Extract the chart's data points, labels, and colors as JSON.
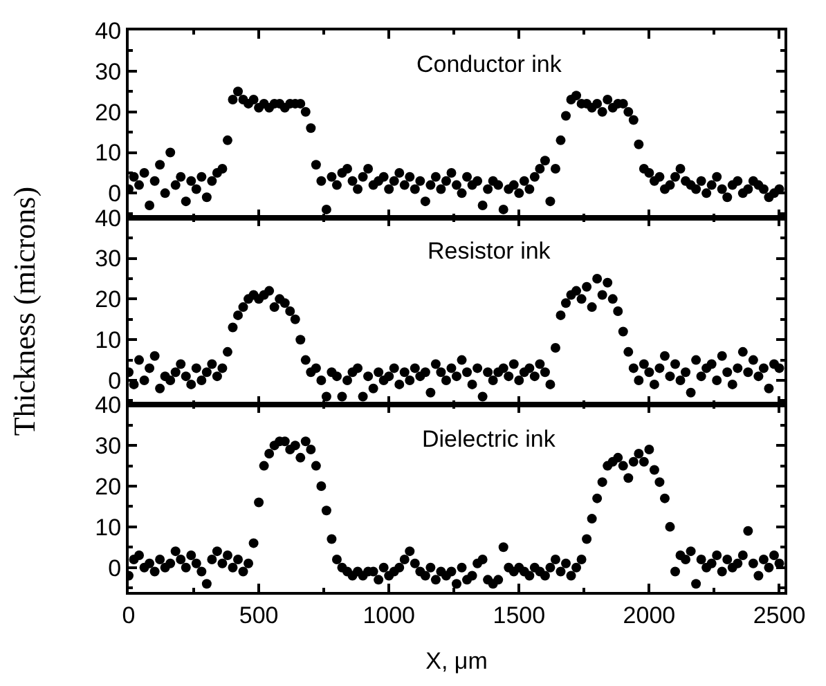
{
  "chart_data": [
    {
      "type": "scatter",
      "title": "Conductor ink",
      "marker": "circle",
      "tick_labels": "y",
      "xlim": [
        0,
        2520
      ],
      "xticks": [
        0,
        500,
        1000,
        1500,
        2000,
        2500
      ],
      "ylim": [
        -6,
        40
      ],
      "yticks": [
        0,
        10,
        20,
        30,
        40
      ],
      "x": [
        0,
        20,
        40,
        60,
        80,
        100,
        120,
        140,
        160,
        180,
        200,
        220,
        240,
        260,
        280,
        300,
        320,
        340,
        360,
        380,
        400,
        420,
        440,
        460,
        480,
        500,
        520,
        540,
        560,
        580,
        600,
        620,
        640,
        660,
        680,
        700,
        720,
        740,
        760,
        780,
        800,
        820,
        840,
        860,
        880,
        900,
        920,
        940,
        960,
        980,
        1000,
        1020,
        1040,
        1060,
        1080,
        1100,
        1120,
        1140,
        1160,
        1180,
        1200,
        1220,
        1240,
        1260,
        1280,
        1300,
        1320,
        1340,
        1360,
        1380,
        1400,
        1420,
        1440,
        1460,
        1480,
        1500,
        1520,
        1540,
        1560,
        1580,
        1600,
        1620,
        1640,
        1660,
        1680,
        1700,
        1720,
        1740,
        1760,
        1780,
        1800,
        1820,
        1840,
        1860,
        1880,
        1900,
        1920,
        1940,
        1960,
        1980,
        2000,
        2020,
        2040,
        2060,
        2080,
        2100,
        2120,
        2140,
        2160,
        2180,
        2200,
        2220,
        2240,
        2260,
        2280,
        2300,
        2320,
        2340,
        2360,
        2380,
        2400,
        2420,
        2440,
        2460,
        2480,
        2500
      ],
      "series": [
        {
          "color": "#000000",
          "values": [
            1,
            4,
            2,
            5,
            -3,
            3,
            7,
            0,
            10,
            2,
            4,
            -2,
            3,
            1,
            4,
            -1,
            3,
            5,
            6,
            13,
            23,
            25,
            23,
            22,
            23,
            21,
            22,
            21,
            22,
            22,
            21,
            22,
            22,
            22,
            20,
            16,
            7,
            3,
            -4,
            4,
            2,
            5,
            6,
            3,
            1,
            4,
            6,
            2,
            3,
            4,
            1,
            3,
            5,
            2,
            4,
            1,
            3,
            -2,
            2,
            4,
            1,
            3,
            5,
            2,
            0,
            4,
            2,
            3,
            -3,
            1,
            3,
            2,
            -4,
            1,
            2,
            0,
            3,
            1,
            4,
            6,
            8,
            -2,
            6,
            13,
            19,
            23,
            24,
            22,
            22,
            21,
            22,
            20,
            23,
            21,
            22,
            22,
            20,
            18,
            12,
            6,
            5,
            3,
            4,
            1,
            2,
            4,
            6,
            3,
            2,
            1,
            3,
            0,
            2,
            4,
            1,
            -1,
            2,
            3,
            0,
            1,
            3,
            2,
            1,
            -1,
            0,
            1
          ]
        }
      ]
    },
    {
      "type": "scatter",
      "title": "Resistor ink",
      "ylabel": "Thickness (microns)",
      "marker": "circle",
      "tick_labels": "y",
      "xlim": [
        0,
        2520
      ],
      "xticks": [
        0,
        500,
        1000,
        1500,
        2000,
        2500
      ],
      "ylim": [
        -6,
        40
      ],
      "yticks": [
        0,
        10,
        20,
        30,
        40
      ],
      "x": [
        0,
        20,
        40,
        60,
        80,
        100,
        120,
        140,
        160,
        180,
        200,
        220,
        240,
        260,
        280,
        300,
        320,
        340,
        360,
        380,
        400,
        420,
        440,
        460,
        480,
        500,
        520,
        540,
        560,
        580,
        600,
        620,
        640,
        660,
        680,
        700,
        720,
        740,
        760,
        780,
        800,
        820,
        840,
        860,
        880,
        900,
        920,
        940,
        960,
        980,
        1000,
        1020,
        1040,
        1060,
        1080,
        1100,
        1120,
        1140,
        1160,
        1180,
        1200,
        1220,
        1240,
        1260,
        1280,
        1300,
        1320,
        1340,
        1360,
        1380,
        1400,
        1420,
        1440,
        1460,
        1480,
        1500,
        1520,
        1540,
        1560,
        1580,
        1600,
        1620,
        1640,
        1660,
        1680,
        1700,
        1720,
        1740,
        1760,
        1780,
        1800,
        1820,
        1840,
        1860,
        1880,
        1900,
        1920,
        1940,
        1960,
        1980,
        2000,
        2020,
        2040,
        2060,
        2080,
        2100,
        2120,
        2140,
        2160,
        2180,
        2200,
        2220,
        2240,
        2260,
        2280,
        2300,
        2320,
        2340,
        2360,
        2380,
        2400,
        2420,
        2440,
        2460,
        2480,
        2500
      ],
      "series": [
        {
          "color": "#000000",
          "values": [
            2,
            -1,
            5,
            0,
            3,
            6,
            -2,
            1,
            0,
            2,
            4,
            1,
            -1,
            3,
            0,
            2,
            4,
            1,
            3,
            7,
            13,
            16,
            18,
            20,
            21,
            20,
            21,
            22,
            18,
            20,
            19,
            17,
            15,
            10,
            5,
            2,
            3,
            0,
            -4,
            2,
            1,
            -4,
            0,
            2,
            3,
            -4,
            1,
            -2,
            2,
            0,
            1,
            3,
            -1,
            2,
            0,
            3,
            1,
            2,
            -3,
            4,
            2,
            0,
            3,
            1,
            5,
            2,
            -1,
            3,
            -4,
            2,
            0,
            2,
            3,
            1,
            4,
            0,
            2,
            3,
            1,
            4,
            2,
            -1,
            8,
            16,
            19,
            21,
            22,
            20,
            23,
            18,
            25,
            21,
            24,
            20,
            17,
            12,
            7,
            3,
            0,
            4,
            2,
            -1,
            3,
            6,
            1,
            4,
            0,
            2,
            -3,
            5,
            1,
            3,
            4,
            0,
            6,
            2,
            -1,
            3,
            7,
            2,
            5,
            1,
            3,
            -2,
            4,
            3
          ]
        }
      ]
    },
    {
      "type": "scatter",
      "title": "Dielectric ink",
      "xlabel": "X, μm",
      "marker": "circle",
      "xlim": [
        0,
        2520
      ],
      "xticks": [
        0,
        500,
        1000,
        1500,
        2000,
        2500
      ],
      "ylim": [
        -6,
        40
      ],
      "yticks": [
        0,
        10,
        20,
        30,
        40
      ],
      "x": [
        0,
        20,
        40,
        60,
        80,
        100,
        120,
        140,
        160,
        180,
        200,
        220,
        240,
        260,
        280,
        300,
        320,
        340,
        360,
        380,
        400,
        420,
        440,
        460,
        480,
        500,
        520,
        540,
        560,
        580,
        600,
        620,
        640,
        660,
        680,
        700,
        720,
        740,
        760,
        780,
        800,
        820,
        840,
        860,
        880,
        900,
        920,
        940,
        960,
        980,
        1000,
        1020,
        1040,
        1060,
        1080,
        1100,
        1120,
        1140,
        1160,
        1180,
        1200,
        1220,
        1240,
        1260,
        1280,
        1300,
        1320,
        1340,
        1360,
        1380,
        1400,
        1420,
        1440,
        1460,
        1480,
        1500,
        1520,
        1540,
        1560,
        1580,
        1600,
        1620,
        1640,
        1660,
        1680,
        1700,
        1720,
        1740,
        1760,
        1780,
        1800,
        1820,
        1840,
        1860,
        1880,
        1900,
        1920,
        1940,
        1960,
        1980,
        2000,
        2020,
        2040,
        2060,
        2080,
        2100,
        2120,
        2140,
        2160,
        2180,
        2200,
        2220,
        2240,
        2260,
        2280,
        2300,
        2320,
        2340,
        2360,
        2380,
        2400,
        2420,
        2440,
        2460,
        2480,
        2500
      ],
      "series": [
        {
          "color": "#000000",
          "values": [
            -2,
            2,
            3,
            0,
            1,
            -1,
            2,
            0,
            1,
            4,
            2,
            0,
            3,
            1,
            -1,
            -4,
            2,
            4,
            1,
            3,
            0,
            2,
            -1,
            1,
            6,
            16,
            25,
            28,
            30,
            31,
            31,
            29,
            30,
            27,
            31,
            29,
            25,
            20,
            14,
            7,
            2,
            0,
            -1,
            -2,
            -1,
            -2,
            -1,
            -1,
            -3,
            0,
            -2,
            -1,
            0,
            2,
            4,
            1,
            -1,
            -2,
            0,
            -3,
            -1,
            -2,
            -1,
            -4,
            0,
            -3,
            -2,
            1,
            2,
            -3,
            -4,
            -3,
            5,
            0,
            -1,
            0,
            -1,
            -2,
            0,
            -1,
            -2,
            0,
            2,
            -1,
            1,
            -2,
            0,
            2,
            7,
            12,
            17,
            21,
            25,
            26,
            27,
            25,
            22,
            26,
            28,
            26,
            29,
            24,
            21,
            17,
            10,
            -1,
            3,
            2,
            4,
            -4,
            2,
            0,
            1,
            3,
            -1,
            2,
            0,
            1,
            3,
            9,
            1,
            -2,
            2,
            0,
            3,
            1
          ]
        }
      ]
    }
  ]
}
